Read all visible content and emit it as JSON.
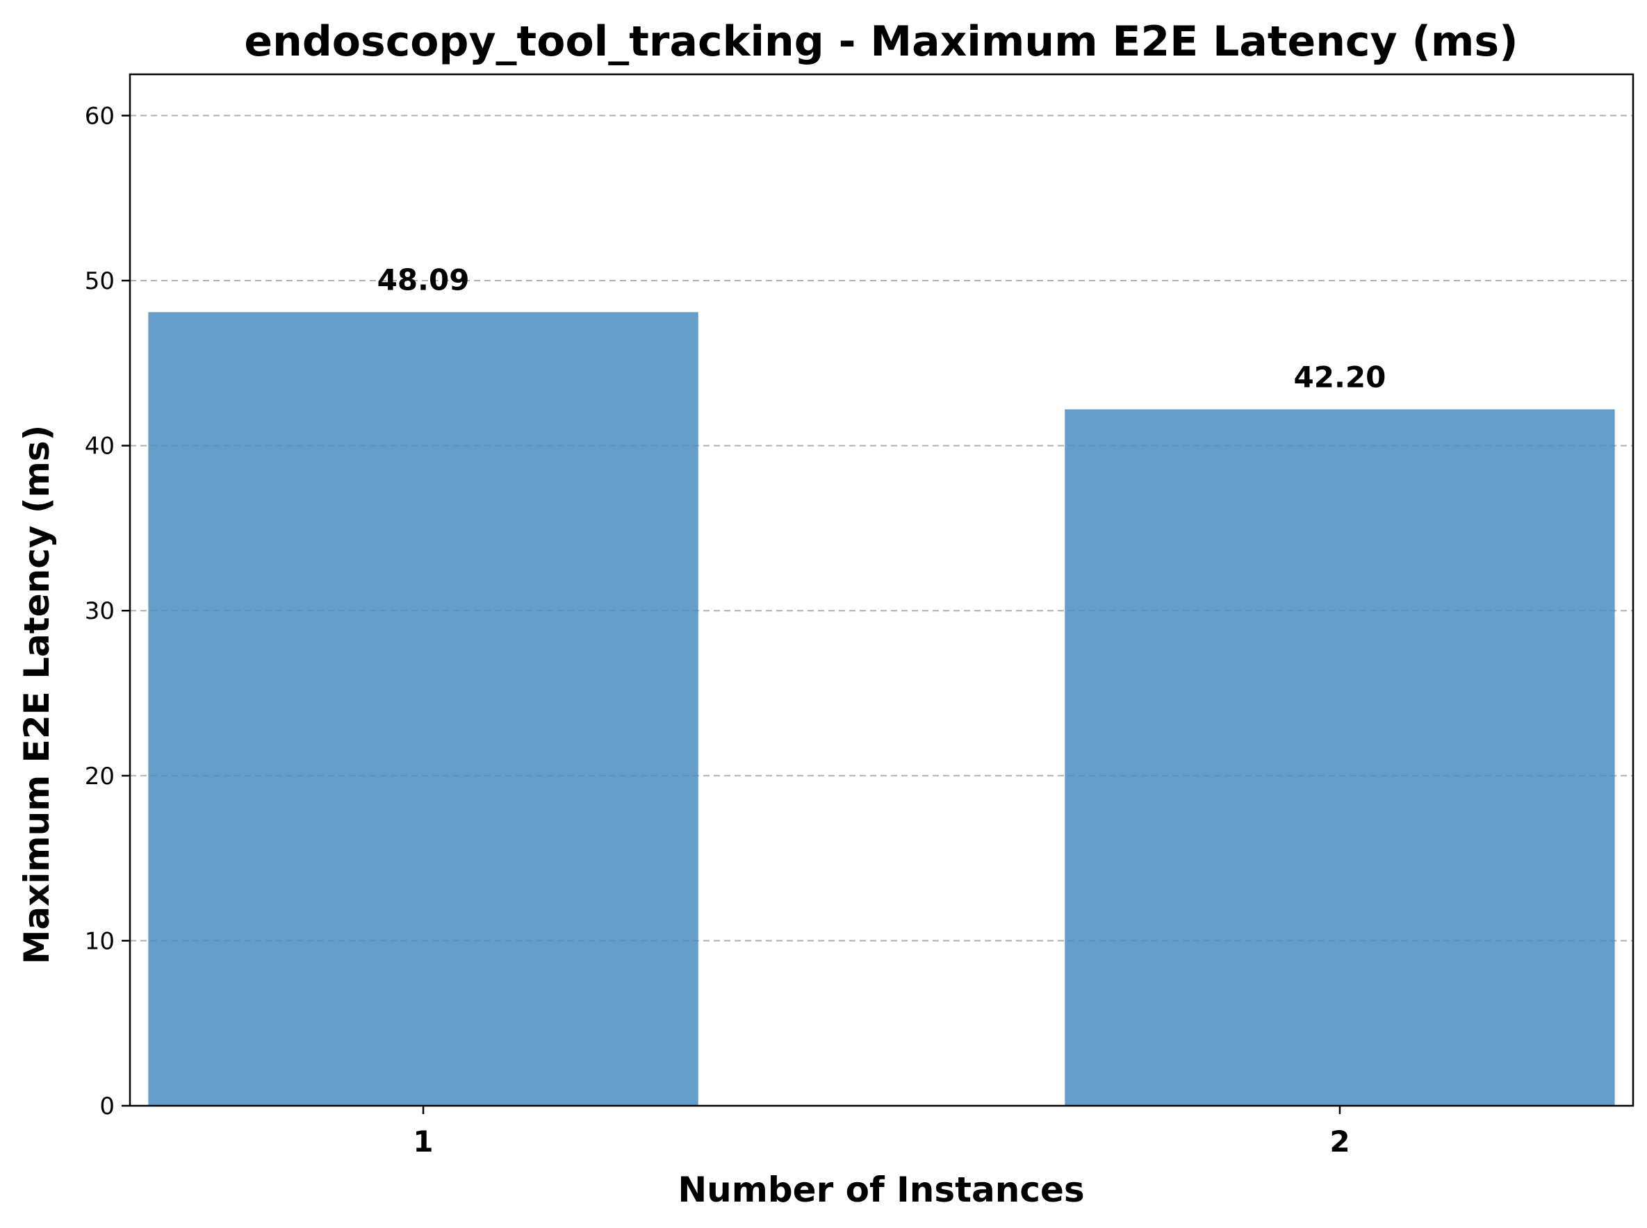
{
  "chart_data": {
    "type": "bar",
    "title": "endoscopy_tool_tracking - Maximum E2E Latency (ms)",
    "xlabel": "Number of Instances",
    "ylabel": "Maximum E2E Latency (ms)",
    "categories": [
      "1",
      "2"
    ],
    "values": [
      48.09,
      42.2
    ],
    "value_labels": [
      "48.09",
      "42.20"
    ],
    "ylim": [
      0,
      62.5
    ],
    "yticks": [
      0,
      10,
      20,
      30,
      40,
      50,
      60
    ],
    "grid": "y-dashed",
    "bar_color": "#4a8cc2",
    "bar_opacity": 0.85
  }
}
